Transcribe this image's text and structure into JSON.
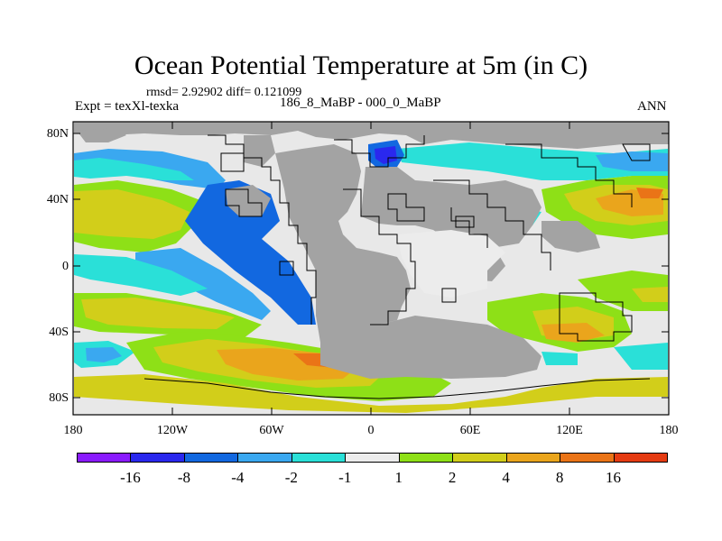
{
  "title": "Ocean Potential Temperature at 5m (in C)",
  "stats": "rmsd= 2.92902 diff= 0.121099",
  "expt": "Expt = texXl-texka",
  "subtitle": "186_8_MaBP - 000_0_MaBP",
  "season": "ANN",
  "colors": {
    "land": "#a3a3a3",
    "background": "#e8e8e8",
    "outline": "#000000"
  },
  "y_axis": {
    "ticks": [
      "80N",
      "40N",
      "0",
      "40S",
      "80S"
    ]
  },
  "x_axis": {
    "ticks": [
      "180",
      "120W",
      "60W",
      "0",
      "60E",
      "120E",
      "180"
    ]
  },
  "colorbar": {
    "colors": [
      "#8a1bff",
      "#2a28ee",
      "#1268e0",
      "#3aa8f0",
      "#2ae0d8",
      "#ececec",
      "#8ee017",
      "#d2ce1a",
      "#eaa51c",
      "#ea7417",
      "#e53b12"
    ],
    "labels": [
      "-16",
      "-8",
      "-4",
      "-2",
      "-1",
      "1",
      "2",
      "4",
      "8",
      "16"
    ]
  }
}
